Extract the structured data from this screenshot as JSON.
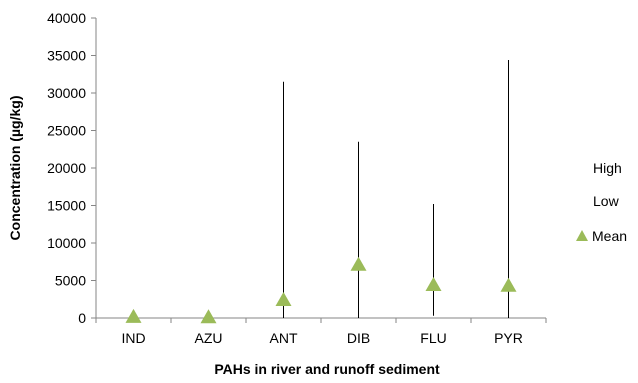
{
  "chart_data": {
    "type": "high-low-mean",
    "categories": [
      "IND",
      "AZU",
      "ANT",
      "DIB",
      "FLU",
      "PYR"
    ],
    "series": [
      {
        "name": "High",
        "values": [
          0,
          0,
          31500,
          23500,
          15200,
          34400
        ]
      },
      {
        "name": "Low",
        "values": [
          0,
          0,
          0,
          0,
          300,
          0
        ]
      },
      {
        "name": "Mean",
        "values": [
          150,
          100,
          2400,
          7100,
          4400,
          4300
        ]
      }
    ],
    "xlabel": "PAHs in river and runoff sediment",
    "ylabel": "Concentration (µg/kg)",
    "ylim": [
      0,
      40000
    ],
    "yticks": [
      0,
      5000,
      10000,
      15000,
      20000,
      25000,
      30000,
      35000,
      40000
    ],
    "grid": false,
    "legend_position": "right",
    "colors": {
      "mean_marker": "#9BBB59",
      "line": "#000000",
      "axis": "#868686"
    }
  }
}
